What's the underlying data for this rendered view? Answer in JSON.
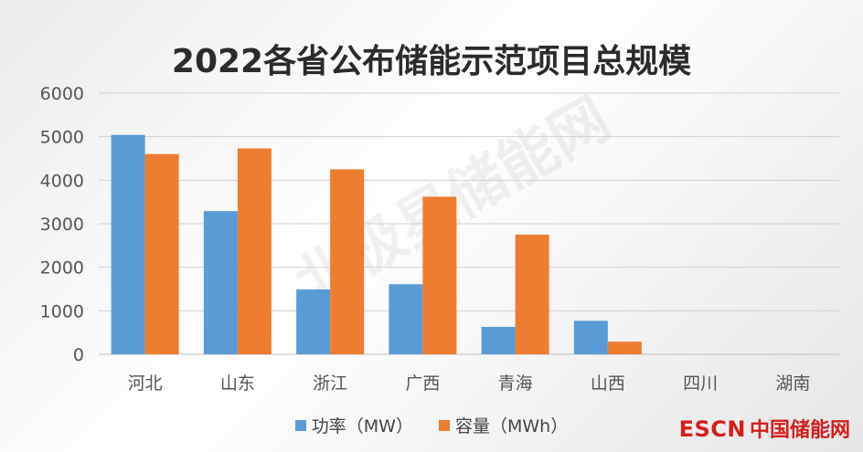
{
  "chart_data": {
    "type": "bar",
    "title": "2022各省公布储能示范项目总规模",
    "categories": [
      "河北",
      "山东",
      "浙江",
      "广西",
      "青海",
      "山西",
      "四川",
      "湖南"
    ],
    "series": [
      {
        "name": "功率（MW）",
        "values": [
          5040,
          3290,
          1490,
          1610,
          630,
          770,
          0,
          0
        ],
        "color": "#5b9bd5"
      },
      {
        "name": "容量（MWh）",
        "values": [
          4600,
          4730,
          4250,
          3620,
          2750,
          290,
          0,
          0
        ],
        "color": "#ed7d31"
      }
    ],
    "ylim": [
      0,
      6000
    ],
    "yticks": [
      0,
      1000,
      2000,
      3000,
      4000,
      5000,
      6000
    ],
    "grid": true,
    "legend_position": "bottom"
  },
  "watermark_text": "北极星储能网",
  "brand": {
    "prefix": "ESCN",
    "suffix": "中国储能网"
  }
}
